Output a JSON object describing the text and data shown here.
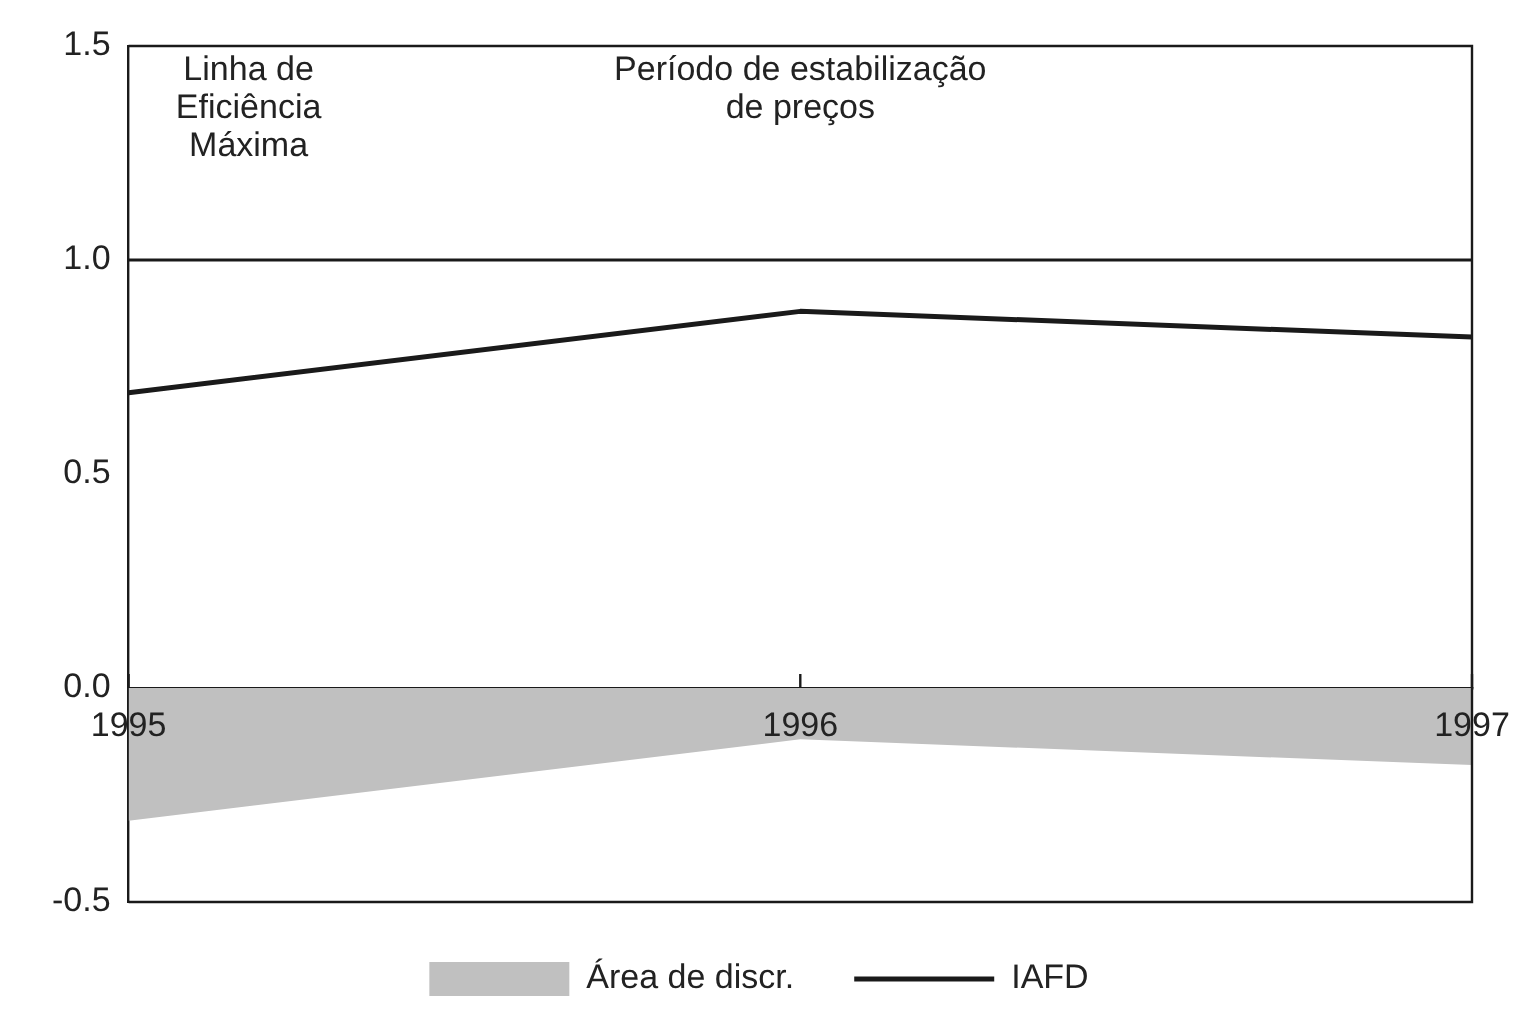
{
  "chart_data": {
    "type": "line",
    "x": [
      1995,
      1996,
      1997
    ],
    "xlim": [
      1995,
      1997
    ],
    "xticks": [
      1995,
      1996,
      1997
    ],
    "ylim": [
      -0.5,
      1.5
    ],
    "yticks": [
      -0.5,
      {
        "value": 0,
        "label": "0.0"
      },
      0.5,
      {
        "value": 1,
        "label": "1.0"
      },
      1.5
    ],
    "series": [
      {
        "name": "Área de discr.",
        "type": "area",
        "color": "#c0c0c0",
        "values": [
          -0.31,
          -0.12,
          -0.18
        ]
      },
      {
        "name": "IAFD",
        "type": "line",
        "color": "#1a1a1a",
        "values": [
          0.69,
          0.88,
          0.82
        ]
      }
    ],
    "ref_lines": [
      {
        "axis": "y",
        "value": 1,
        "label": "Linha de Eficiência Máxima",
        "color": "#1a1a1a"
      }
    ],
    "annotations": [
      "Período de estabilização de preços"
    ],
    "legend": "bottom",
    "marker": "none",
    "line_style": "solid"
  }
}
